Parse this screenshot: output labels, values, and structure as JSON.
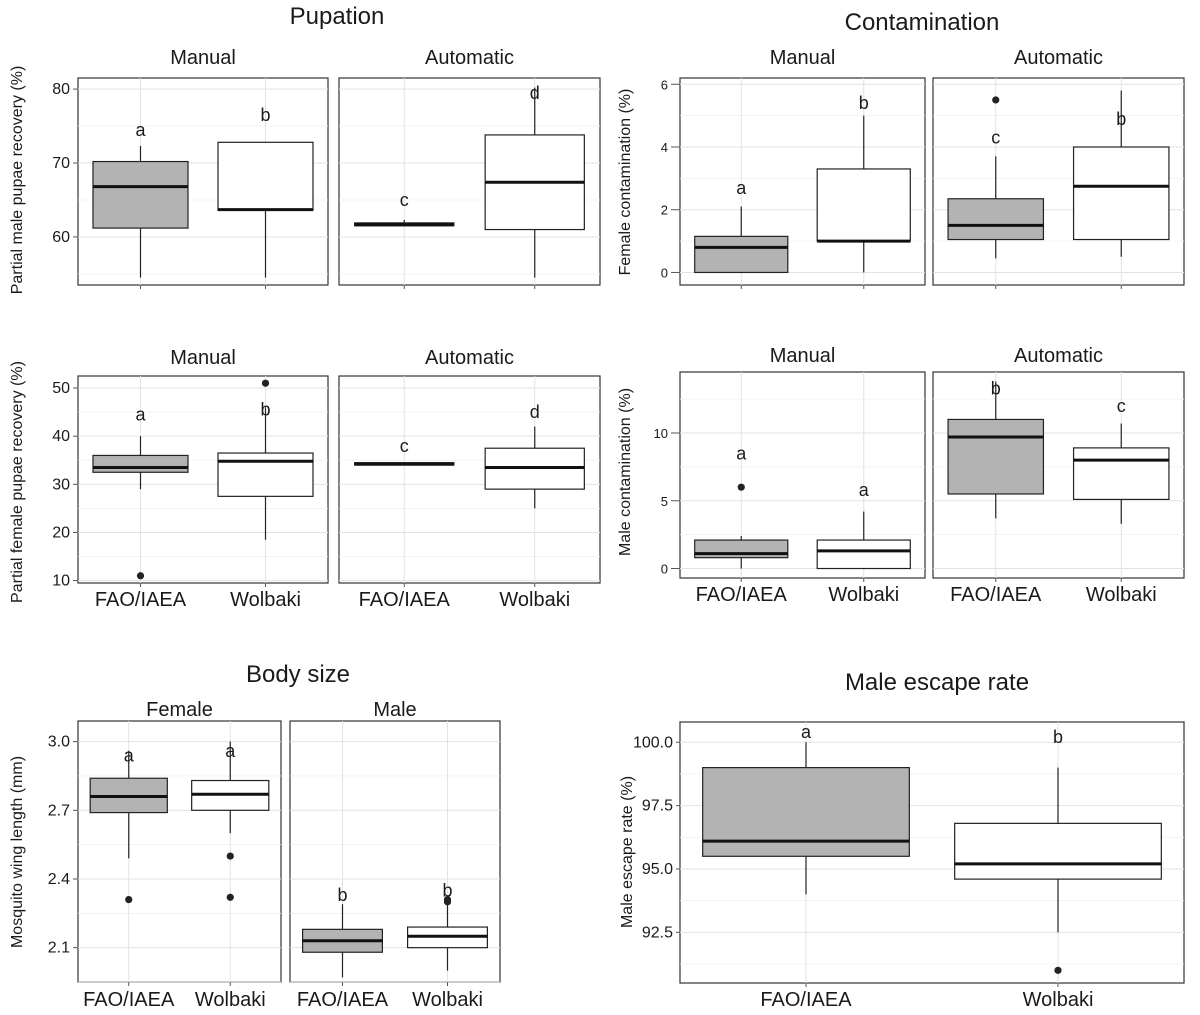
{
  "colors": {
    "fao": "#b3b3b3",
    "wolbaki": "#ffffff"
  },
  "groups": [
    "FAO/IAEA",
    "Wolbaki"
  ],
  "chart_data": [
    {
      "id": "pup-male",
      "type": "boxplot",
      "title": "Pupation",
      "ylabel": "Partial male pupae recovery (%)",
      "ylim": [
        53.5,
        81.5
      ],
      "yticks": [
        60,
        70,
        80
      ],
      "facets": [
        {
          "label": "Manual",
          "boxes": [
            {
              "group": "FAO/IAEA",
              "q1": 61.2,
              "median": 66.8,
              "q3": 70.2,
              "lo": 54.5,
              "hi": 72.3,
              "outliers": [],
              "sig": "a",
              "sig_y": 74.5
            },
            {
              "group": "Wolbaki",
              "q1": 63.6,
              "median": 63.7,
              "q3": 72.8,
              "lo": 54.5,
              "hi": 72.8,
              "outliers": [],
              "sig": "b",
              "sig_y": 76.5
            }
          ]
        },
        {
          "label": "Automatic",
          "boxes": [
            {
              "group": "FAO/IAEA",
              "q1": 61.5,
              "median": 61.7,
              "q3": 61.9,
              "lo": 61.5,
              "hi": 62.3,
              "outliers": [],
              "sig": "c",
              "sig_y": 65.0
            },
            {
              "group": "Wolbaki",
              "q1": 61.0,
              "median": 67.4,
              "q3": 73.8,
              "lo": 54.5,
              "hi": 80.2,
              "outliers": [],
              "sig": "d",
              "sig_y": 79.5
            }
          ]
        }
      ]
    },
    {
      "id": "pup-female",
      "type": "boxplot",
      "ylabel": "Partial female pupae recovery (%)",
      "ylim": [
        9.5,
        52.5
      ],
      "yticks": [
        10,
        20,
        30,
        40,
        50
      ],
      "facets": [
        {
          "label": "Manual",
          "boxes": [
            {
              "group": "FAO/IAEA",
              "q1": 32.5,
              "median": 33.5,
              "q3": 36.0,
              "lo": 29.0,
              "hi": 40.0,
              "outliers": [
                11.0
              ],
              "sig": "a",
              "sig_y": 44.5
            },
            {
              "group": "Wolbaki",
              "q1": 27.5,
              "median": 34.8,
              "q3": 36.5,
              "lo": 18.5,
              "hi": 46.0,
              "outliers": [
                51.0
              ],
              "sig": "b",
              "sig_y": 45.5
            }
          ]
        },
        {
          "label": "Automatic",
          "boxes": [
            {
              "group": "FAO/IAEA",
              "q1": 34.0,
              "median": 34.2,
              "q3": 34.5,
              "lo": 34.0,
              "hi": 34.6,
              "outliers": [],
              "sig": "c",
              "sig_y": 38.0
            },
            {
              "group": "Wolbaki",
              "q1": 29.0,
              "median": 33.5,
              "q3": 37.5,
              "lo": 25.0,
              "hi": 42.0,
              "outliers": [],
              "sig": "d",
              "sig_y": 45.0
            }
          ]
        }
      ]
    },
    {
      "id": "cont-female",
      "type": "boxplot",
      "title": "Contamination",
      "ylabel": "Female contamination (%)",
      "ylim": [
        -0.4,
        6.2
      ],
      "yticks": [
        0,
        2,
        4,
        6
      ],
      "facets": [
        {
          "label": "Manual",
          "boxes": [
            {
              "group": "FAO/IAEA",
              "q1": 0.0,
              "median": 0.8,
              "q3": 1.15,
              "lo": 0.0,
              "hi": 2.1,
              "outliers": [],
              "sig": "a",
              "sig_y": 2.7
            },
            {
              "group": "Wolbaki",
              "q1": 1.0,
              "median": 1.0,
              "q3": 3.3,
              "lo": 0.0,
              "hi": 5.0,
              "outliers": [],
              "sig": "b",
              "sig_y": 5.4
            }
          ]
        },
        {
          "label": "Automatic",
          "boxes": [
            {
              "group": "FAO/IAEA",
              "q1": 1.05,
              "median": 1.5,
              "q3": 2.35,
              "lo": 0.45,
              "hi": 3.7,
              "outliers": [
                5.5
              ],
              "sig": "c",
              "sig_y": 4.3
            },
            {
              "group": "Wolbaki",
              "q1": 1.05,
              "median": 2.75,
              "q3": 4.0,
              "lo": 0.5,
              "hi": 5.8,
              "outliers": [],
              "sig": "b",
              "sig_y": 4.9
            }
          ]
        }
      ]
    },
    {
      "id": "cont-male",
      "type": "boxplot",
      "ylabel": "Male contamination (%)",
      "ylim": [
        -0.7,
        14.5
      ],
      "yticks": [
        0,
        5,
        10
      ],
      "facets": [
        {
          "label": "Manual",
          "boxes": [
            {
              "group": "FAO/IAEA",
              "q1": 0.8,
              "median": 1.1,
              "q3": 2.1,
              "lo": 0.0,
              "hi": 2.4,
              "outliers": [
                6.0
              ],
              "sig": "a",
              "sig_y": 8.5
            },
            {
              "group": "Wolbaki",
              "q1": 0.0,
              "median": 1.3,
              "q3": 2.1,
              "lo": 0.0,
              "hi": 4.2,
              "outliers": [],
              "sig": "a",
              "sig_y": 5.8
            }
          ]
        },
        {
          "label": "Automatic",
          "boxes": [
            {
              "group": "FAO/IAEA",
              "q1": 5.5,
              "median": 9.7,
              "q3": 11.0,
              "lo": 3.7,
              "hi": 13.8,
              "outliers": [],
              "sig": "b",
              "sig_y": 13.3
            },
            {
              "group": "Wolbaki",
              "q1": 5.1,
              "median": 8.0,
              "q3": 8.9,
              "lo": 3.3,
              "hi": 10.7,
              "outliers": [],
              "sig": "c",
              "sig_y": 12.0
            }
          ]
        }
      ]
    },
    {
      "id": "body-size",
      "type": "boxplot",
      "title": "Body size",
      "ylabel": "Mosquito wing length (mm)",
      "ylim": [
        1.95,
        3.09
      ],
      "yticks": [
        2.1,
        2.4,
        2.7,
        3.0
      ],
      "yticklabels": [
        "2.1",
        "2.4",
        "2.7",
        "3.0"
      ],
      "facets": [
        {
          "label": "Female",
          "boxes": [
            {
              "group": "FAO/IAEA",
              "q1": 2.69,
              "median": 2.76,
              "q3": 2.84,
              "lo": 2.49,
              "hi": 2.96,
              "outliers": [
                2.31
              ],
              "sig": "a",
              "sig_y": 2.94
            },
            {
              "group": "Wolbaki",
              "q1": 2.7,
              "median": 2.77,
              "q3": 2.83,
              "lo": 2.6,
              "hi": 3.0,
              "outliers": [
                2.5,
                2.32
              ],
              "sig": "a",
              "sig_y": 2.96
            }
          ]
        },
        {
          "label": "Male",
          "boxes": [
            {
              "group": "FAO/IAEA",
              "q1": 2.08,
              "median": 2.13,
              "q3": 2.18,
              "lo": 1.97,
              "hi": 2.29,
              "outliers": [],
              "sig": "b",
              "sig_y": 2.33
            },
            {
              "group": "Wolbaki",
              "q1": 2.1,
              "median": 2.15,
              "q3": 2.19,
              "lo": 2.0,
              "hi": 2.29,
              "outliers": [
                2.31,
                2.3
              ],
              "sig": "b",
              "sig_y": 2.35
            }
          ]
        }
      ]
    },
    {
      "id": "escape",
      "type": "boxplot",
      "title": "Male escape rate",
      "ylabel": "Male escape rate (%)",
      "ylim": [
        90.5,
        100.8
      ],
      "yticks": [
        92.5,
        95.0,
        97.5,
        100.0
      ],
      "yticklabels": [
        "92.5",
        "95.0",
        "97.5",
        "100.0"
      ],
      "facets": [
        {
          "label": "",
          "boxes": [
            {
              "group": "FAO/IAEA",
              "q1": 95.5,
              "median": 96.1,
              "q3": 99.0,
              "lo": 94.0,
              "hi": 100.0,
              "outliers": [],
              "sig": "a",
              "sig_y": 100.4
            },
            {
              "group": "Wolbaki",
              "q1": 94.6,
              "median": 95.2,
              "q3": 96.8,
              "lo": 92.5,
              "hi": 99.0,
              "outliers": [
                91.0
              ],
              "sig": "b",
              "sig_y": 100.2
            }
          ]
        }
      ]
    }
  ]
}
